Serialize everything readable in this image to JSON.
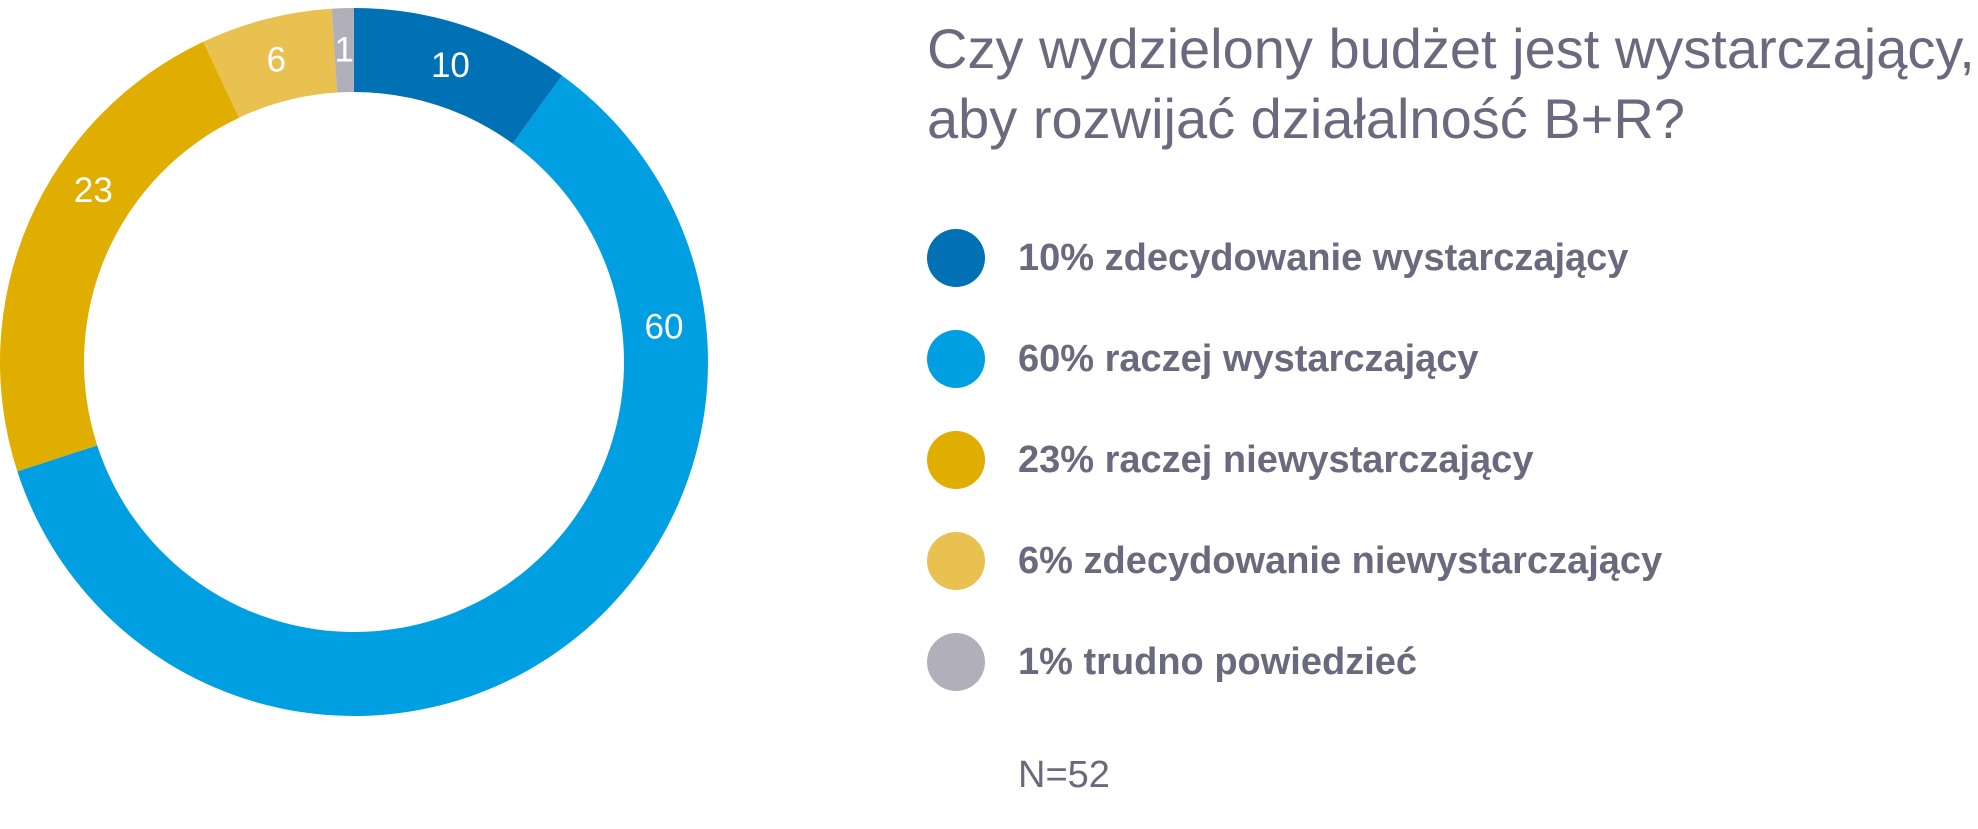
{
  "chart_data": {
    "type": "pie",
    "subtype": "donut",
    "title_lines": [
      "Czy wydzielony budżet jest wystarczający,",
      "aby rozwijać działalność B+R?"
    ],
    "slices": [
      {
        "label": "zdecydowanie wystarczający",
        "value": 10,
        "data_label": "10",
        "legend": "10% zdecydowanie wystarczający",
        "color": "#0071b5"
      },
      {
        "label": "raczej wystarczający",
        "value": 60,
        "data_label": "60",
        "legend": "60% raczej wystarczający",
        "color": "#009fe2"
      },
      {
        "label": "raczej niewystarczający",
        "value": 23,
        "data_label": "23",
        "legend": "23% raczej niewystarczający",
        "color": "#e0ae00"
      },
      {
        "label": "zdecydowanie niewystarczający",
        "value": 6,
        "data_label": "6",
        "legend": "6% zdecydowanie niewystarczający",
        "color": "#e8c150"
      },
      {
        "label": "trudno powiedzieć",
        "value": 1,
        "data_label": "1",
        "legend": "1% trudno powiedzieć",
        "color": "#b1afba"
      }
    ],
    "start": "top",
    "direction": "clockwise",
    "legend_placement": "right",
    "note": "N=52"
  }
}
